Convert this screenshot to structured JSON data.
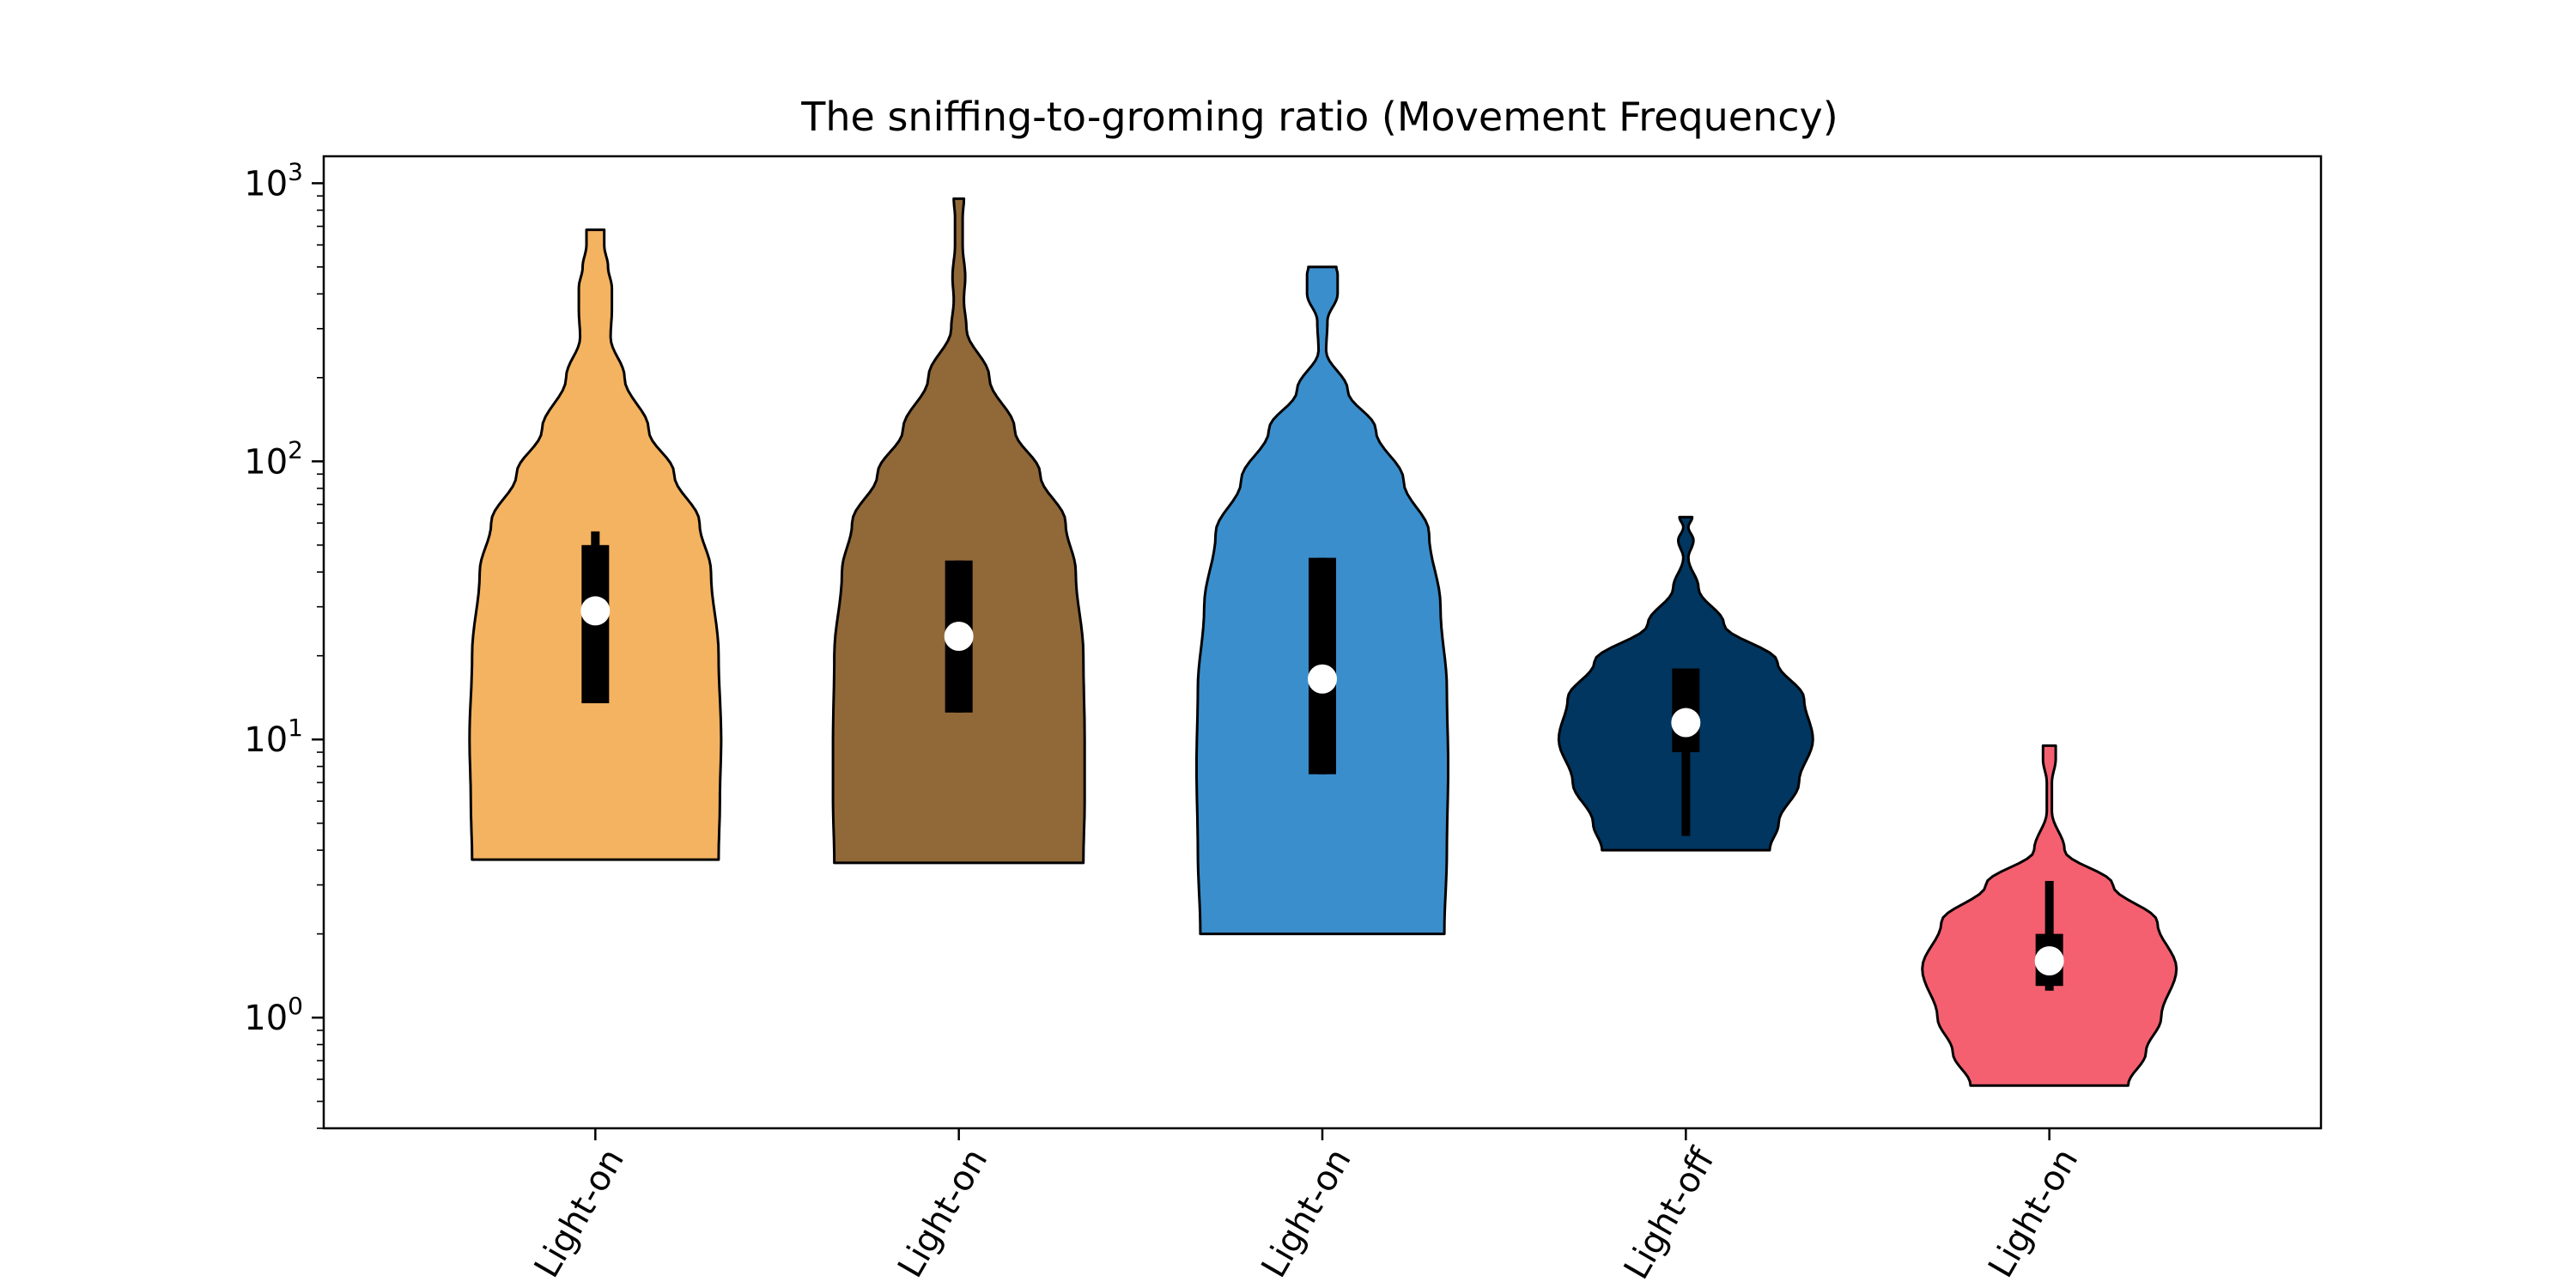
{
  "chart_data": {
    "type": "violin",
    "title": "The sniffing-to-groming ratio (Movement Frequency)",
    "xlabel": "",
    "ylabel": "",
    "yscale": "log",
    "ylim": [
      0.4,
      1250
    ],
    "grid": false,
    "legend": "none",
    "categories": [
      "Light-on",
      "Light-on",
      "Light-on",
      "Light-off",
      "Light-on"
    ],
    "yticks": [
      {
        "base": "10",
        "exp": "0",
        "value": 1
      },
      {
        "base": "10",
        "exp": "1",
        "value": 10
      },
      {
        "base": "10",
        "exp": "2",
        "value": 100
      },
      {
        "base": "10",
        "exp": "3",
        "value": 1000
      }
    ],
    "series": [
      {
        "color": "#F4B360",
        "min": 3.7,
        "max": 680,
        "median": 29,
        "q1": 13.5,
        "q3": 50,
        "whisker_high": 56,
        "profile": [
          [
            3.7,
            0.97
          ],
          [
            6,
            0.98
          ],
          [
            10,
            0.99
          ],
          [
            20,
            0.97
          ],
          [
            40,
            0.91
          ],
          [
            60,
            0.82
          ],
          [
            90,
            0.62
          ],
          [
            130,
            0.42
          ],
          [
            200,
            0.23
          ],
          [
            280,
            0.12
          ],
          [
            350,
            0.13
          ],
          [
            420,
            0.13
          ],
          [
            500,
            0.1
          ],
          [
            600,
            0.07
          ],
          [
            680,
            0.07
          ]
        ]
      },
      {
        "color": "#916838",
        "min": 3.6,
        "max": 880,
        "median": 23.5,
        "q1": 12.5,
        "q3": 44,
        "whisker_high": 44,
        "profile": [
          [
            3.6,
            0.98
          ],
          [
            6,
            0.99
          ],
          [
            10,
            0.99
          ],
          [
            20,
            0.98
          ],
          [
            40,
            0.92
          ],
          [
            60,
            0.84
          ],
          [
            90,
            0.64
          ],
          [
            130,
            0.44
          ],
          [
            200,
            0.24
          ],
          [
            300,
            0.06
          ],
          [
            380,
            0.04
          ],
          [
            460,
            0.05
          ],
          [
            600,
            0.03
          ],
          [
            750,
            0.03
          ],
          [
            880,
            0.04
          ]
        ]
      },
      {
        "color": "#3A8ECC",
        "min": 2.0,
        "max": 500,
        "median": 16.5,
        "q1": 7.5,
        "q3": 45,
        "whisker_high": 45,
        "profile": [
          [
            2.0,
            0.96
          ],
          [
            4,
            0.98
          ],
          [
            8,
            0.99
          ],
          [
            15,
            0.98
          ],
          [
            30,
            0.93
          ],
          [
            55,
            0.84
          ],
          [
            85,
            0.64
          ],
          [
            130,
            0.42
          ],
          [
            180,
            0.2
          ],
          [
            250,
            0.03
          ],
          [
            320,
            0.04
          ],
          [
            400,
            0.12
          ],
          [
            470,
            0.12
          ],
          [
            500,
            0.11
          ]
        ]
      },
      {
        "color": "#003660",
        "min": 4.0,
        "max": 63,
        "median": 11.5,
        "q1": 9,
        "q3": 18,
        "whisker_low": 4.5,
        "whisker_high": 18,
        "profile": [
          [
            4.0,
            0.66
          ],
          [
            5,
            0.73
          ],
          [
            7,
            0.89
          ],
          [
            10,
            1.0
          ],
          [
            14,
            0.93
          ],
          [
            19,
            0.72
          ],
          [
            26,
            0.3
          ],
          [
            35,
            0.1
          ],
          [
            45,
            0.02
          ],
          [
            52,
            0.06
          ],
          [
            58,
            0.02
          ],
          [
            63,
            0.05
          ]
        ]
      },
      {
        "color": "#F46070",
        "min": 0.57,
        "max": 9.5,
        "median": 1.6,
        "q1": 1.3,
        "q3": 2.0,
        "whisker_low": 1.25,
        "whisker_high": 3.1,
        "profile": [
          [
            0.57,
            0.62
          ],
          [
            0.75,
            0.76
          ],
          [
            1.0,
            0.88
          ],
          [
            1.5,
            1.0
          ],
          [
            2.2,
            0.85
          ],
          [
            3.0,
            0.5
          ],
          [
            4.0,
            0.12
          ],
          [
            5.5,
            0.02
          ],
          [
            7.0,
            0.02
          ],
          [
            8.5,
            0.05
          ],
          [
            9.5,
            0.05
          ]
        ]
      }
    ]
  }
}
